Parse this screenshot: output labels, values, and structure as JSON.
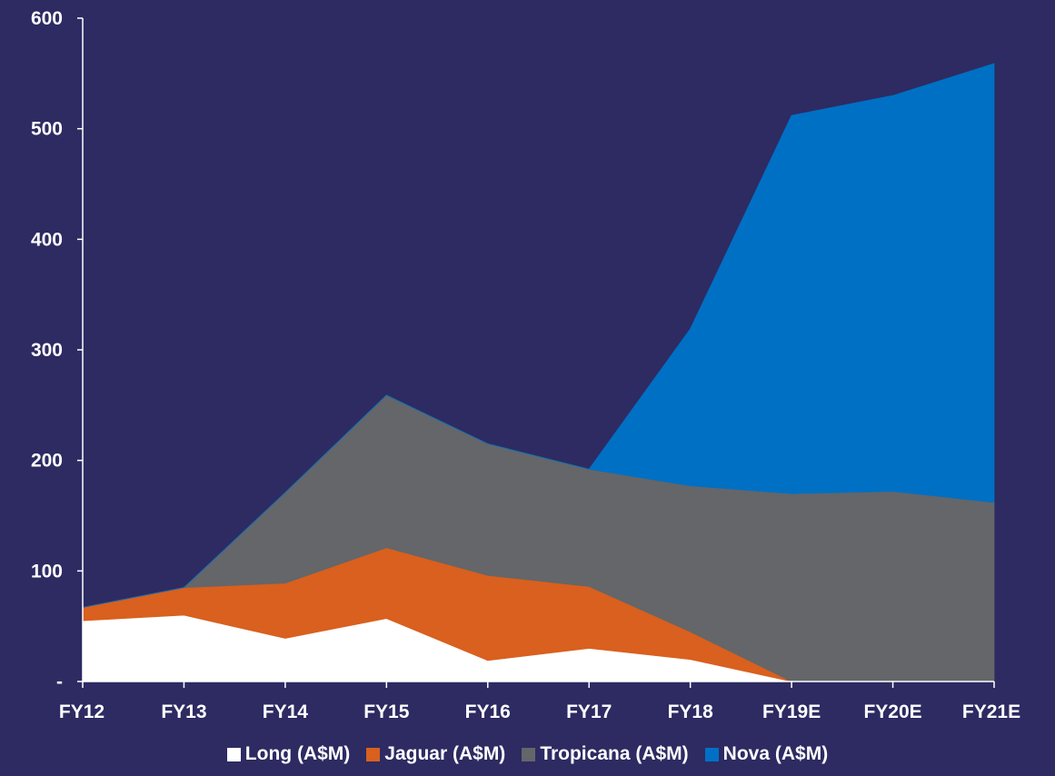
{
  "chart_data": {
    "type": "area",
    "stacked": true,
    "categories": [
      "FY12",
      "FY13",
      "FY14",
      "FY15",
      "FY16",
      "FY17",
      "FY18",
      "FY19E",
      "FY20E",
      "FY21E"
    ],
    "series": [
      {
        "name": "Long (A$M)",
        "color": "#ffffff",
        "values": [
          55,
          60,
          39,
          57,
          19,
          30,
          20,
          0,
          0,
          0
        ]
      },
      {
        "name": "Jaguar (A$M)",
        "color": "#d9601e",
        "values": [
          12,
          25,
          50,
          64,
          77,
          56,
          25,
          0,
          0,
          0
        ]
      },
      {
        "name": "Tropicana (A$M)",
        "color": "#646669",
        "values": [
          0,
          0,
          82,
          138,
          119,
          106,
          132,
          170,
          172,
          162
        ]
      },
      {
        "name": "Nova (A$M)",
        "color": "#0070c4",
        "values": [
          0,
          0,
          0,
          0,
          0,
          0,
          142,
          342,
          358,
          397
        ]
      }
    ],
    "ylim": [
      0,
      600
    ],
    "yticks": [
      0,
      100,
      200,
      300,
      400,
      500,
      600
    ],
    "ytick_labels": [
      "-",
      "100",
      "200",
      "300",
      "400",
      "500",
      "600"
    ],
    "grid": false,
    "legend_position": "bottom"
  }
}
